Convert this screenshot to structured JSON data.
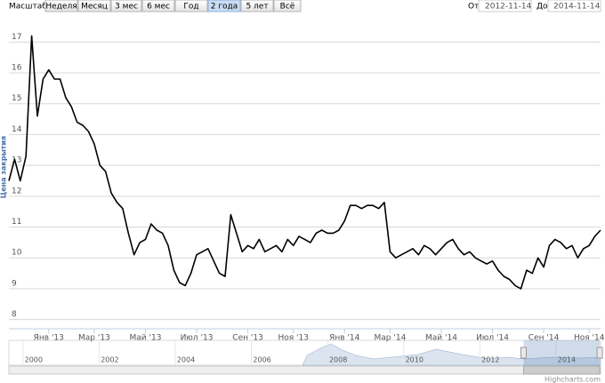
{
  "range_selector": {
    "label": "Масштаб",
    "buttons": [
      "Неделя",
      "Месяц",
      "3 мес",
      "6 мес",
      "Год",
      "2 года",
      "5 лет",
      "Всё"
    ],
    "selected": 5,
    "from_label": "От",
    "from": "2012-11-14",
    "to_label": "До",
    "to": "2014-11-14"
  },
  "chart_data": {
    "type": "line",
    "y_axis_title": "Цена закрытия",
    "color": "#000000",
    "grid": true,
    "categories": [
      null,
      null,
      null,
      null,
      null,
      null,
      null,
      "Янв '13",
      null,
      null,
      null,
      null,
      null,
      null,
      null,
      "Мар '13",
      null,
      null,
      null,
      null,
      null,
      null,
      null,
      null,
      "Май '13",
      null,
      null,
      null,
      null,
      null,
      null,
      null,
      null,
      "Июл '13",
      null,
      null,
      null,
      null,
      null,
      null,
      null,
      null,
      "Сен '13",
      null,
      null,
      null,
      null,
      null,
      null,
      null,
      "Ноя '13",
      null,
      null,
      null,
      null,
      null,
      null,
      null,
      null,
      "Янв '14",
      null,
      null,
      null,
      null,
      null,
      null,
      null,
      "Мар '14",
      null,
      null,
      null,
      null,
      null,
      null,
      null,
      null,
      "Май '14",
      null,
      null,
      null,
      null,
      null,
      null,
      null,
      null,
      "Июл '14",
      null,
      null,
      null,
      null,
      null,
      null,
      null,
      null,
      "Сен '14",
      null,
      null,
      null,
      null,
      null,
      null,
      null,
      "Ноя '14",
      null,
      null
    ],
    "values": [
      12.5,
      13.2,
      12.5,
      13.3,
      17.2,
      14.6,
      15.8,
      16.1,
      15.8,
      15.8,
      15.2,
      14.9,
      14.4,
      14.3,
      14.1,
      13.7,
      13.0,
      12.8,
      12.1,
      11.8,
      11.6,
      10.8,
      10.1,
      10.5,
      10.6,
      11.1,
      10.9,
      10.8,
      10.4,
      9.6,
      9.2,
      9.1,
      9.5,
      10.1,
      10.2,
      10.3,
      9.9,
      9.5,
      9.4,
      11.4,
      10.8,
      10.2,
      10.4,
      10.3,
      10.6,
      10.2,
      10.3,
      10.4,
      10.2,
      10.6,
      10.4,
      10.7,
      10.6,
      10.5,
      10.8,
      10.9,
      10.8,
      10.8,
      10.9,
      11.2,
      11.7,
      11.7,
      11.6,
      11.7,
      11.7,
      11.6,
      11.8,
      10.2,
      10.0,
      10.1,
      10.2,
      10.3,
      10.1,
      10.4,
      10.3,
      10.1,
      10.3,
      10.5,
      10.6,
      10.3,
      10.1,
      10.2,
      10.0,
      9.9,
      9.8,
      9.9,
      9.6,
      9.4,
      9.3,
      9.1,
      9.0,
      9.6,
      9.5,
      10.0,
      9.7,
      10.4,
      10.6,
      10.5,
      10.3,
      10.4,
      10.0,
      10.3,
      10.4,
      10.7,
      10.9
    ],
    "ylim": [
      7.7,
      17.5
    ],
    "yticks": [
      8,
      9,
      10,
      11,
      12,
      13,
      14,
      15,
      16,
      17
    ]
  },
  "navigator": {
    "xlim": [
      1999.35,
      2014.89
    ],
    "xticks": [
      2000,
      2002,
      2004,
      2006,
      2008,
      2010,
      2012,
      2014
    ]
  },
  "credits": "Highcharts.com"
}
